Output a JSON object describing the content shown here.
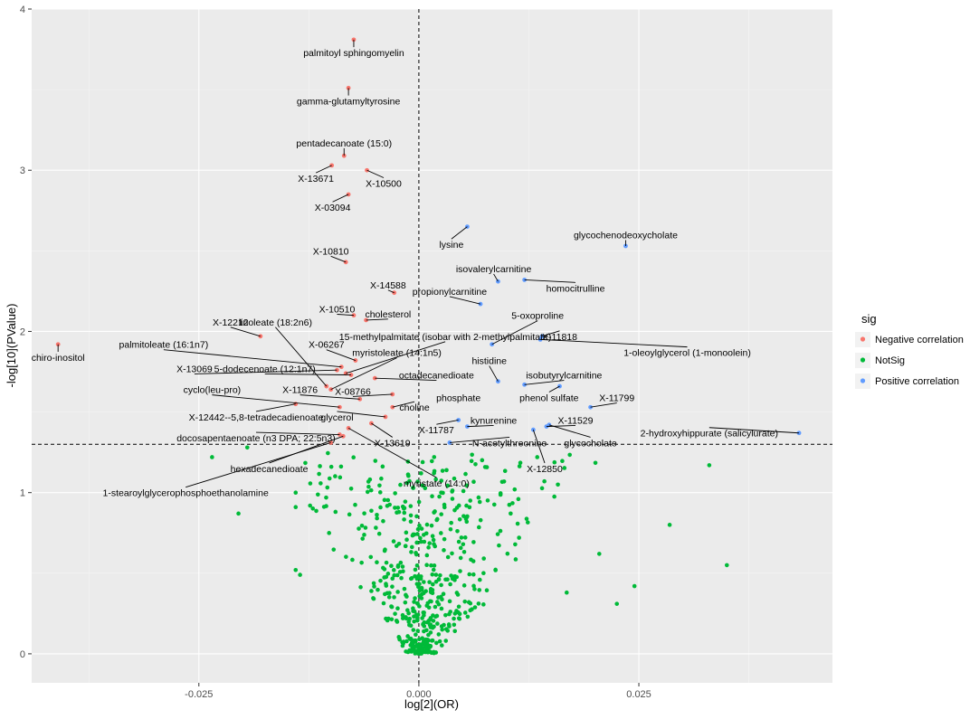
{
  "chart_data": {
    "type": "scatter",
    "title": "",
    "xlabel": "log[2](OR)",
    "ylabel": "-log[10](PValue)",
    "xlim": [
      -0.044,
      0.047
    ],
    "ylim": [
      -0.18,
      4.0
    ],
    "x_ticks": [
      -0.025,
      0,
      0.025
    ],
    "x_tick_labels": [
      "-0.025",
      "0.000",
      "0.025"
    ],
    "y_ticks": [
      0,
      1,
      2,
      3,
      4
    ],
    "y_tick_labels": [
      "0",
      "1",
      "2",
      "3",
      "4"
    ],
    "vline_x": 0,
    "hline_y": 1.3,
    "grid": true,
    "legend": {
      "title": "sig",
      "position": "right",
      "entries": [
        "Negative correlation",
        "NotSig",
        "Positive correlation"
      ]
    },
    "colors": {
      "Negative correlation": "#F8766D",
      "NotSig": "#00BA38",
      "Positive correlation": "#619CFF",
      "panel": "#EBEBEB"
    },
    "series": [
      {
        "name": "Negative correlation",
        "points": [
          {
            "x": -0.0074,
            "y": 3.81,
            "label": "palmitoyl sphingomyelin"
          },
          {
            "x": -0.008,
            "y": 3.51,
            "label": "gamma-glutamyltyrosine"
          },
          {
            "x": -0.0085,
            "y": 3.09,
            "label": "pentadecanoate (15:0)"
          },
          {
            "x": -0.0099,
            "y": 3.03,
            "label": "X-13671"
          },
          {
            "x": -0.0059,
            "y": 3.0,
            "label": "X-10500"
          },
          {
            "x": -0.008,
            "y": 2.85,
            "label": "X-03094"
          },
          {
            "x": -0.0083,
            "y": 2.43,
            "label": "X-10810"
          },
          {
            "x": -0.0028,
            "y": 2.24,
            "label": "X-14588"
          },
          {
            "x": -0.0074,
            "y": 2.1,
            "label": "X-10510"
          },
          {
            "x": -0.006,
            "y": 2.07,
            "label": "cholesterol"
          },
          {
            "x": -0.018,
            "y": 1.97,
            "label": "X-12212"
          },
          {
            "x": -0.041,
            "y": 1.92,
            "label": "chiro-inositol"
          },
          {
            "x": -0.0072,
            "y": 1.82,
            "label": "X-06267"
          },
          {
            "x": -0.0088,
            "y": 1.78,
            "label": "palmitoleate (16:1n7)"
          },
          {
            "x": -0.0093,
            "y": 1.76,
            "label": "X-13069"
          },
          {
            "x": -0.0083,
            "y": 1.74,
            "label": "15-methylpalmitate (isobar with 2-methylpalmitate)"
          },
          {
            "x": -0.0077,
            "y": 1.73,
            "label": "5-dodecenoate (12:1n7)"
          },
          {
            "x": -0.005,
            "y": 1.71,
            "label": "octadecanedioate"
          },
          {
            "x": -0.0105,
            "y": 1.66,
            "label": "linoleate (18:2n6)"
          },
          {
            "x": -0.01,
            "y": 1.64,
            "label": "myristoleate (14:1n5)"
          },
          {
            "x": -0.003,
            "y": 1.61,
            "label": "X-08766"
          },
          {
            "x": -0.0067,
            "y": 1.58,
            "label": "X-11876"
          },
          {
            "x": -0.009,
            "y": 1.53,
            "label": "cyclo(leu-pro)"
          },
          {
            "x": -0.014,
            "y": 1.55,
            "label": "X-12442--5,8-tetradecadienoate"
          },
          {
            "x": -0.003,
            "y": 1.53,
            "label": "choline"
          },
          {
            "x": -0.0038,
            "y": 1.47,
            "label": "glycerol"
          },
          {
            "x": -0.0054,
            "y": 1.43,
            "label": "X-13619"
          },
          {
            "x": -0.008,
            "y": 1.4,
            "label": "myristate (14:0)"
          },
          {
            "x": -0.009,
            "y": 1.36,
            "label": "docosapentaenoate (n3 DPA; 22:5n3)"
          },
          {
            "x": -0.0086,
            "y": 1.35,
            "label": "hexadecanedioate"
          },
          {
            "x": -0.01,
            "y": 1.31,
            "label": "1-stearoylglycerophosphoethanolamine"
          }
        ]
      },
      {
        "name": "Positive correlation",
        "points": [
          {
            "x": 0.0055,
            "y": 2.65,
            "label": "lysine"
          },
          {
            "x": 0.0235,
            "y": 2.53,
            "label": "glycochenodeoxycholate"
          },
          {
            "x": 0.009,
            "y": 2.31,
            "label": "isovalerylcarnitine"
          },
          {
            "x": 0.012,
            "y": 2.32,
            "label": "homocitrulline"
          },
          {
            "x": 0.007,
            "y": 2.17,
            "label": "propionylcarnitine"
          },
          {
            "x": 0.014,
            "y": 1.97,
            "label": "X-11818"
          },
          {
            "x": 0.0083,
            "y": 1.92,
            "label": "5-oxoproline"
          },
          {
            "x": 0.0138,
            "y": 1.95,
            "label": "1-oleoylglycerol (1-monoolein)"
          },
          {
            "x": 0.009,
            "y": 1.69,
            "label": "histidine"
          },
          {
            "x": 0.012,
            "y": 1.67,
            "label": "isobutyrylcarnitine"
          },
          {
            "x": 0.0195,
            "y": 1.53,
            "label": "X-11799"
          },
          {
            "x": 0.016,
            "y": 1.66,
            "label": "phenol sulfate"
          },
          {
            "x": 0.0045,
            "y": 1.45,
            "label": "X-11787"
          },
          {
            "x": 0.0055,
            "y": 1.41,
            "label": "kynurenine"
          },
          {
            "x": 0.0145,
            "y": 1.41,
            "label": "X-11529"
          },
          {
            "x": 0.0148,
            "y": 1.42,
            "label": "glycocholate"
          },
          {
            "x": 0.013,
            "y": 1.39,
            "label": "X-12850"
          },
          {
            "x": 0.0035,
            "y": 1.31,
            "label": "N-acetylthreonine"
          },
          {
            "x": 0.0432,
            "y": 1.37,
            "label": "2-hydroxyhippurate (salicylurate)"
          }
        ]
      }
    ],
    "labels": [
      {
        "text": "palmitoyl sphingomyelin",
        "tx": -0.0074,
        "ty": 3.73
      },
      {
        "text": "gamma-glutamyltyrosine",
        "tx": -0.008,
        "ty": 3.43
      },
      {
        "text": "pentadecanoate (15:0)",
        "tx": -0.0085,
        "ty": 3.17
      },
      {
        "text": "X-13671",
        "tx": -0.0117,
        "ty": 2.95
      },
      {
        "text": "X-10500",
        "tx": -0.004,
        "ty": 2.92
      },
      {
        "text": "X-03094",
        "tx": -0.0098,
        "ty": 2.77
      },
      {
        "text": "X-10810",
        "tx": -0.01,
        "ty": 2.5
      },
      {
        "text": "X-14588",
        "tx": -0.0035,
        "ty": 2.29
      },
      {
        "text": "X-10510",
        "tx": -0.0093,
        "ty": 2.14
      },
      {
        "text": "cholesterol",
        "tx": -0.0035,
        "ty": 2.11
      },
      {
        "text": "X-12212",
        "tx": -0.0214,
        "ty": 2.06
      },
      {
        "text": "chiro-inositol",
        "tx": -0.041,
        "ty": 1.84
      },
      {
        "text": "linoleate (18:2n6)",
        "tx": -0.0163,
        "ty": 2.06
      },
      {
        "text": "15-methylpalmitate (isobar with 2-methylpalmitate)",
        "tx": 0.003,
        "ty": 1.97
      },
      {
        "text": "X-11818",
        "tx": 0.016,
        "ty": 1.97
      },
      {
        "text": "5-oxoproline",
        "tx": 0.0135,
        "ty": 2.1
      },
      {
        "text": "palmitoleate (16:1n7)",
        "tx": -0.029,
        "ty": 1.92
      },
      {
        "text": "myristoleate (14:1n5)",
        "tx": -0.0025,
        "ty": 1.87
      },
      {
        "text": "X-06267",
        "tx": -0.0105,
        "ty": 1.92
      },
      {
        "text": "1-oleoylglycerol (1-monoolein)",
        "tx": 0.0305,
        "ty": 1.87
      },
      {
        "text": "X-13069",
        "tx": -0.0255,
        "ty": 1.77
      },
      {
        "text": "5-dodecenoate (12:1n7)",
        "tx": -0.0175,
        "ty": 1.77
      },
      {
        "text": "octadecanedioate",
        "tx": 0.002,
        "ty": 1.73
      },
      {
        "text": "histidine",
        "tx": 0.008,
        "ty": 1.82
      },
      {
        "text": "isobutyrylcarnitine",
        "tx": 0.0165,
        "ty": 1.73
      },
      {
        "text": "cyclo(leu-pro)",
        "tx": -0.0235,
        "ty": 1.64
      },
      {
        "text": "X-11876",
        "tx": -0.0135,
        "ty": 1.64
      },
      {
        "text": "X-08766",
        "tx": -0.0075,
        "ty": 1.63
      },
      {
        "text": "phosphate",
        "tx": 0.0045,
        "ty": 1.59
      },
      {
        "text": "phenol sulfate",
        "tx": 0.0148,
        "ty": 1.59
      },
      {
        "text": "X-11799",
        "tx": 0.0225,
        "ty": 1.59
      },
      {
        "text": "choline",
        "tx": -0.0005,
        "ty": 1.53
      },
      {
        "text": "X-12442--5,8-tetradecadienoate",
        "tx": -0.0185,
        "ty": 1.47
      },
      {
        "text": "glycerol",
        "tx": -0.0093,
        "ty": 1.47
      },
      {
        "text": "kynurenine",
        "tx": 0.0085,
        "ty": 1.45
      },
      {
        "text": "X-11529",
        "tx": 0.0178,
        "ty": 1.45
      },
      {
        "text": "X-11787",
        "tx": 0.002,
        "ty": 1.39
      },
      {
        "text": "docosapentaenoate (n3 DPA; 22:5n3)",
        "tx": -0.0185,
        "ty": 1.34
      },
      {
        "text": "X-13619",
        "tx": -0.003,
        "ty": 1.31
      },
      {
        "text": "N-acetylthreonine",
        "tx": 0.0103,
        "ty": 1.31
      },
      {
        "text": "glycocholate",
        "tx": 0.0195,
        "ty": 1.31
      },
      {
        "text": "2-hydroxyhippurate (salicylurate)",
        "tx": 0.033,
        "ty": 1.37
      },
      {
        "text": "hexadecanedioate",
        "tx": -0.017,
        "ty": 1.15
      },
      {
        "text": "X-12850",
        "tx": 0.0143,
        "ty": 1.15
      },
      {
        "text": "myristate (14:0)",
        "tx": 0.002,
        "ty": 1.06
      },
      {
        "text": "1-stearoylglycerophosphoethanolamine",
        "tx": -0.0265,
        "ty": 1.0
      },
      {
        "text": "lysine",
        "tx": 0.0037,
        "ty": 2.54
      },
      {
        "text": "glycochenodeoxycholate",
        "tx": 0.0235,
        "ty": 2.6
      },
      {
        "text": "isovalerylcarnitine",
        "tx": 0.0085,
        "ty": 2.39
      },
      {
        "text": "homocitrulline",
        "tx": 0.0178,
        "ty": 2.27
      },
      {
        "text": "propionylcarnitine",
        "tx": 0.0035,
        "ty": 2.25
      }
    ]
  }
}
